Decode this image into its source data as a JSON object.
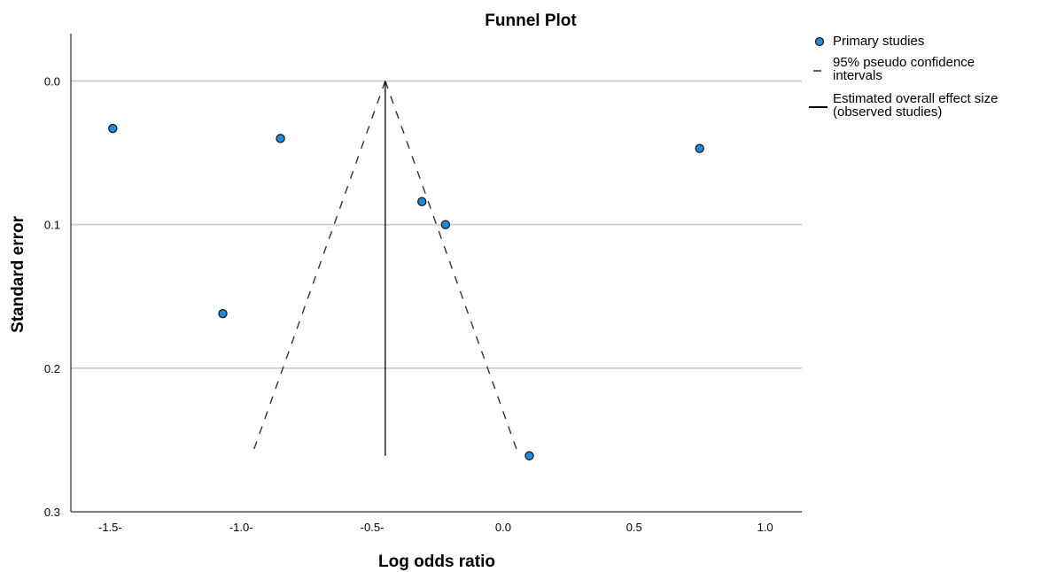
{
  "chart_data": {
    "type": "scatter",
    "title": "Funnel Plot",
    "xlabel": "Log odds ratio",
    "ylabel": "Standard error",
    "xlim": [
      -1.65,
      1.14
    ],
    "ylim": [
      0.3,
      -0.033
    ],
    "y_reversed": true,
    "grid": "horizontal",
    "legend_position": "right",
    "x_ticks": [
      -1.5,
      -1.0,
      -0.5,
      0.0,
      0.5,
      1.0
    ],
    "x_tick_labels": [
      "-1.5-",
      "-1.0-",
      "-0.5-",
      "0.0",
      "0.5",
      "1.0"
    ],
    "y_ticks": [
      0.0,
      0.1,
      0.2,
      0.3
    ],
    "y_tick_labels": [
      "0.0",
      "0.1",
      "0.2",
      "0.3"
    ],
    "series": [
      {
        "name": "Primary studies",
        "kind": "points",
        "color": "#1f8ad8",
        "x": [
          -1.49,
          -0.85,
          0.75,
          -0.31,
          -0.22,
          -1.07,
          0.1
        ],
        "y": [
          0.033,
          0.04,
          0.047,
          0.084,
          0.1,
          0.162,
          0.261
        ]
      },
      {
        "name": "95% pseudo confidence intervals",
        "kind": "dashed-lines",
        "color": "#333333",
        "lines": [
          {
            "x": [
              -0.45,
              -0.96
            ],
            "y": [
              0.0,
              0.261
            ]
          },
          {
            "x": [
              -0.45,
              0.06
            ],
            "y": [
              0.0,
              0.261
            ]
          }
        ]
      },
      {
        "name": "Estimated overall effect size (observed studies)",
        "kind": "vertical-line",
        "color": "#000000",
        "x": -0.45,
        "y": [
          0.0,
          0.261
        ]
      }
    ],
    "legend": [
      {
        "marker": "circle",
        "label_lines": [
          "Primary studies"
        ]
      },
      {
        "marker": "dash",
        "label_lines": [
          "95% pseudo confidence",
          "intervals"
        ]
      },
      {
        "marker": "line",
        "label_lines": [
          "Estimated overall effect size",
          "(observed studies)"
        ]
      }
    ]
  }
}
